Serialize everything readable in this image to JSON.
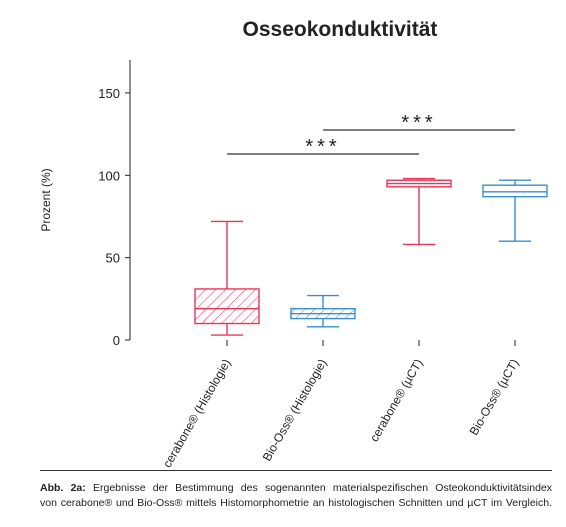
{
  "chart_data": {
    "type": "box",
    "title": "Osseokonduktivität",
    "y_label": "Prozent (%)",
    "categories": [
      "cerabone® (Histologie)",
      "Bio-Oss® (Histologie)",
      "cerabone® (µCT)",
      "Bio-Oss® (µCT)"
    ],
    "boxes": [
      {
        "low": 3,
        "q1": 10,
        "median": 19,
        "q3": 31,
        "high": 72,
        "color": "#e8365a",
        "hatch": true
      },
      {
        "low": 8,
        "q1": 13,
        "median": 16,
        "q3": 19,
        "high": 27,
        "color": "#3a8fd0",
        "hatch": true
      },
      {
        "low": 58,
        "q1": 93,
        "median": 95,
        "q3": 97,
        "high": 98,
        "color": "#e8365a",
        "hatch": false
      },
      {
        "low": 60,
        "q1": 87,
        "median": 90,
        "q3": 94,
        "high": 97,
        "color": "#3a8fd0",
        "hatch": false
      }
    ],
    "annotations": [
      {
        "text": "***"
      },
      {
        "text": "***"
      }
    ],
    "ylim": [
      0,
      170
    ],
    "yticks": [
      0,
      50,
      100,
      150
    ]
  },
  "caption": {
    "label": "Abb. 2a:",
    "lines": [
      "Ergebnisse der Bestimmung des sogenannten materialspezifischen Osteokonduktivitätsindex",
      "von cerabone® und Bio-Oss® mittels Histomorphometrie an histologischen Schnitten und µCT im Vergleich."
    ]
  }
}
